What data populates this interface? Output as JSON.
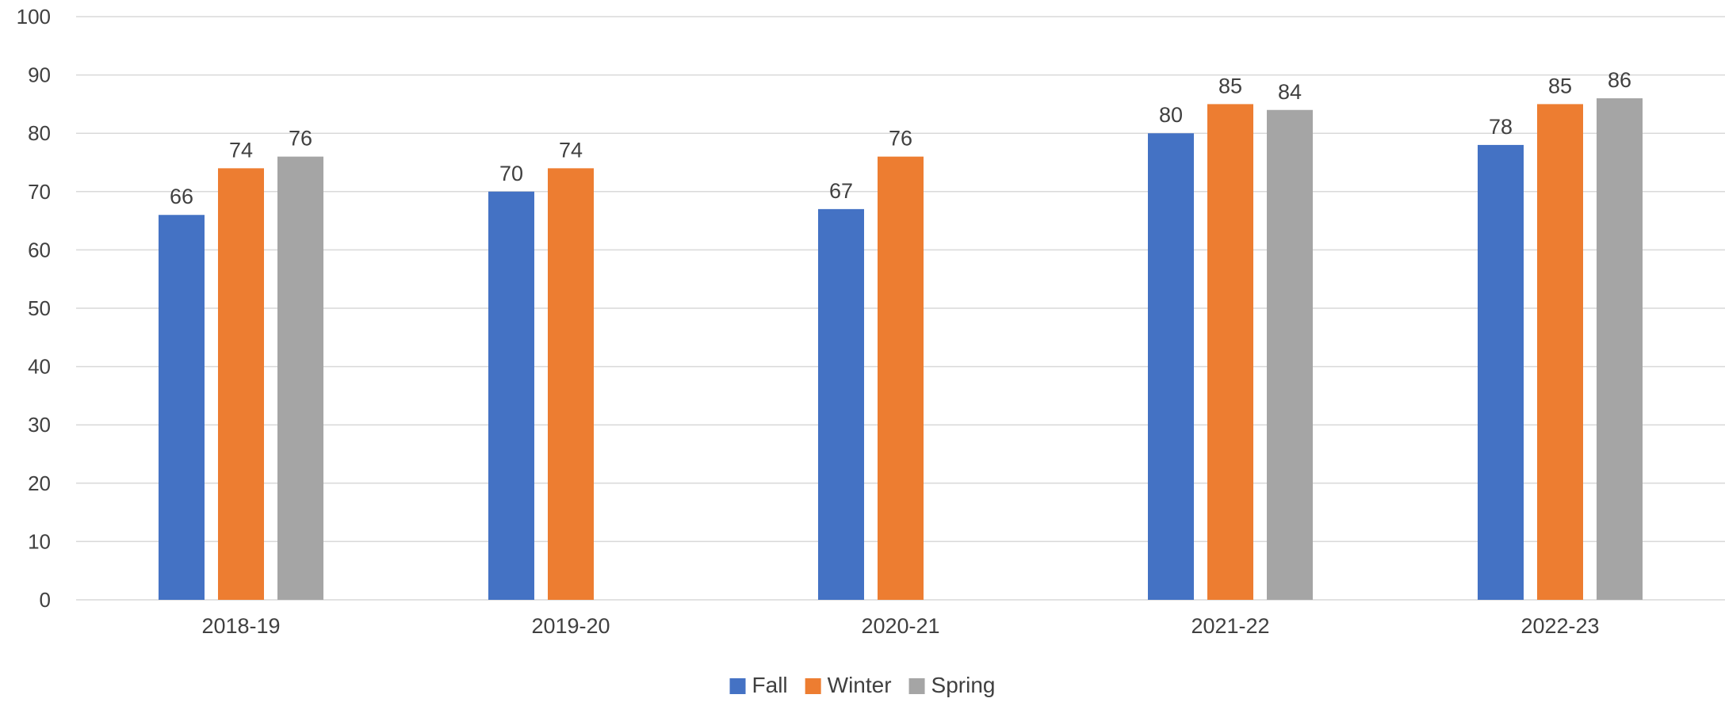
{
  "chart_data": {
    "type": "bar",
    "title": "",
    "xlabel": "",
    "ylabel": "",
    "ylim": [
      0,
      100
    ],
    "ytick_step": 10,
    "grid": true,
    "legend_position": "bottom",
    "categories": [
      "2018-19",
      "2019-20",
      "2020-21",
      "2021-22",
      "2022-23"
    ],
    "series": [
      {
        "name": "Fall",
        "color": "#4472C4",
        "values": [
          66,
          70,
          67,
          80,
          78
        ]
      },
      {
        "name": "Winter",
        "color": "#ED7D31",
        "values": [
          74,
          74,
          76,
          85,
          85
        ]
      },
      {
        "name": "Spring",
        "color": "#A5A5A5",
        "values": [
          76,
          null,
          null,
          84,
          86
        ]
      }
    ]
  }
}
